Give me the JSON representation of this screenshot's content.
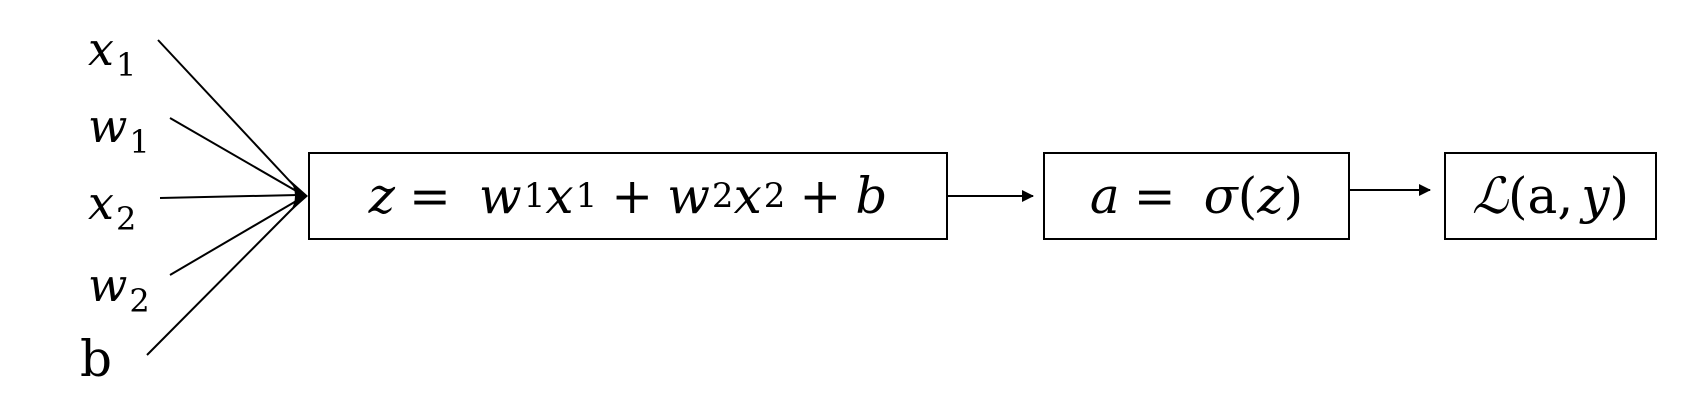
{
  "inputs": [
    {
      "symbol": "x",
      "sub": "1"
    },
    {
      "symbol": "w",
      "sub": "1"
    },
    {
      "symbol": "x",
      "sub": "2"
    },
    {
      "symbol": "w",
      "sub": "2"
    },
    {
      "symbol": "b",
      "sub": ""
    }
  ],
  "linear_node": {
    "lhs": "z",
    "eq": "=",
    "w1": "w",
    "w1_sub": "1",
    "x1": "x",
    "x1_sub": "1",
    "plus1": "+",
    "w2": "w",
    "w2_sub": "2",
    "x2": "x",
    "x2_sub": "2",
    "plus2": "+",
    "bias": "b"
  },
  "activation_node": {
    "lhs": "a",
    "eq": "=",
    "func": "σ",
    "open": "(",
    "arg": "z",
    "close": ")"
  },
  "loss_node": {
    "func": "ℒ",
    "open": "(",
    "arg1": "a",
    "comma": ",",
    "arg2": "y",
    "close": ")"
  },
  "colors": {
    "stroke": "#000000",
    "background": "#ffffff"
  }
}
